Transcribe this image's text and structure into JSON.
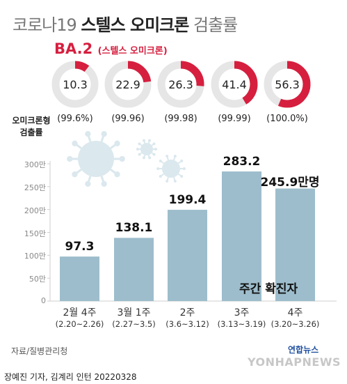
{
  "title": {
    "normal": "코로나19",
    "bold": "스텔스 오미크론",
    "suffix": "검출률"
  },
  "ba2": {
    "label": "BA.2",
    "sub": "(스텔스 오미크론)"
  },
  "omicron_label": "오미크론형 검출률",
  "legend_label": "주간 확진자",
  "source": "자료/질병관리청",
  "brand": "연합뉴스",
  "watermark": "YONHAPNEWS",
  "footer": "장예진 기자, 김계리 인턴  20220328",
  "colors": {
    "bar": "#9dbdcc",
    "donut_fill": "#d61f3f",
    "donut_track": "#e6e6e6",
    "virus": "#dbe8ee"
  },
  "chart_data": [
    {
      "type": "pie",
      "title": "BA.2 (스텔스 오미크론)",
      "categories": [
        "2월 4주",
        "3월 1주",
        "2주",
        "3주",
        "4주"
      ],
      "values": [
        10.3,
        22.9,
        26.3,
        41.4,
        56.3
      ],
      "labels": [
        "10.3",
        "22.9",
        "26.3",
        "41.4",
        "56.3"
      ],
      "omicron_rate_labels": [
        "(99.6%)",
        "(99.96)",
        "(99.98)",
        "(99.99)",
        "(100.0%)"
      ],
      "unit": "%"
    },
    {
      "type": "bar",
      "title": "주간 확진자",
      "categories": [
        "2월 4주",
        "3월 1주",
        "2주",
        "3주",
        "4주"
      ],
      "subcategories": [
        "(2.20~2.26)",
        "(2.27~3.5)",
        "(3.6~3.12)",
        "(3.13~3.19)",
        "(3.20~3.26)"
      ],
      "values": [
        97.3,
        138.1,
        199.4,
        283.2,
        245.9
      ],
      "value_labels": [
        "97.3",
        "138.1",
        "199.4",
        "283.2",
        "245.9만명"
      ],
      "ylim": [
        0,
        300
      ],
      "yticks": [
        0,
        50,
        100,
        150,
        200,
        250,
        300
      ],
      "ytick_labels": [
        "0",
        "50만",
        "100만",
        "150만",
        "200만",
        "250만",
        "300만"
      ],
      "grid": false
    }
  ]
}
